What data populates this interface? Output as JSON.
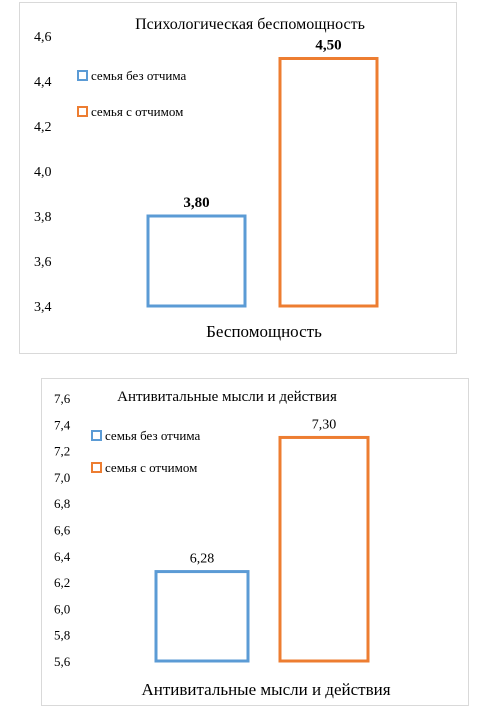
{
  "chart_data": [
    {
      "type": "bar",
      "title": "Психологическая беспомощность",
      "xlabel": "Беспомощность",
      "ylabel": "",
      "ylim": [
        3.4,
        4.6
      ],
      "yticks": [
        "3,4",
        "3,6",
        "3,8",
        "4,0",
        "4,2",
        "4,4",
        "4,6"
      ],
      "series": [
        {
          "name": "семья без отчима",
          "values": [
            3.8
          ],
          "label": "3,80",
          "color": "#5b9bd5"
        },
        {
          "name": "семья с отчимом",
          "values": [
            4.5
          ],
          "label": "4,50",
          "color": "#ed7d31"
        }
      ],
      "legend_position": "top-left",
      "grid": false
    },
    {
      "type": "bar",
      "title": "Антивитальные мысли и действия",
      "xlabel": "Антивитальные мысли и действия",
      "ylabel": "",
      "ylim": [
        5.6,
        7.6
      ],
      "yticks": [
        "5,6",
        "5,8",
        "6,0",
        "6,2",
        "6,4",
        "6,6",
        "6,8",
        "7,0",
        "7,2",
        "7,4",
        "7,6"
      ],
      "series": [
        {
          "name": "семья без отчима",
          "values": [
            6.28
          ],
          "label": "6,28",
          "color": "#5b9bd5"
        },
        {
          "name": "семья с отчимом",
          "values": [
            7.3
          ],
          "label": "7,30",
          "color": "#ed7d31"
        }
      ],
      "legend_position": "top-left",
      "grid": false
    }
  ]
}
